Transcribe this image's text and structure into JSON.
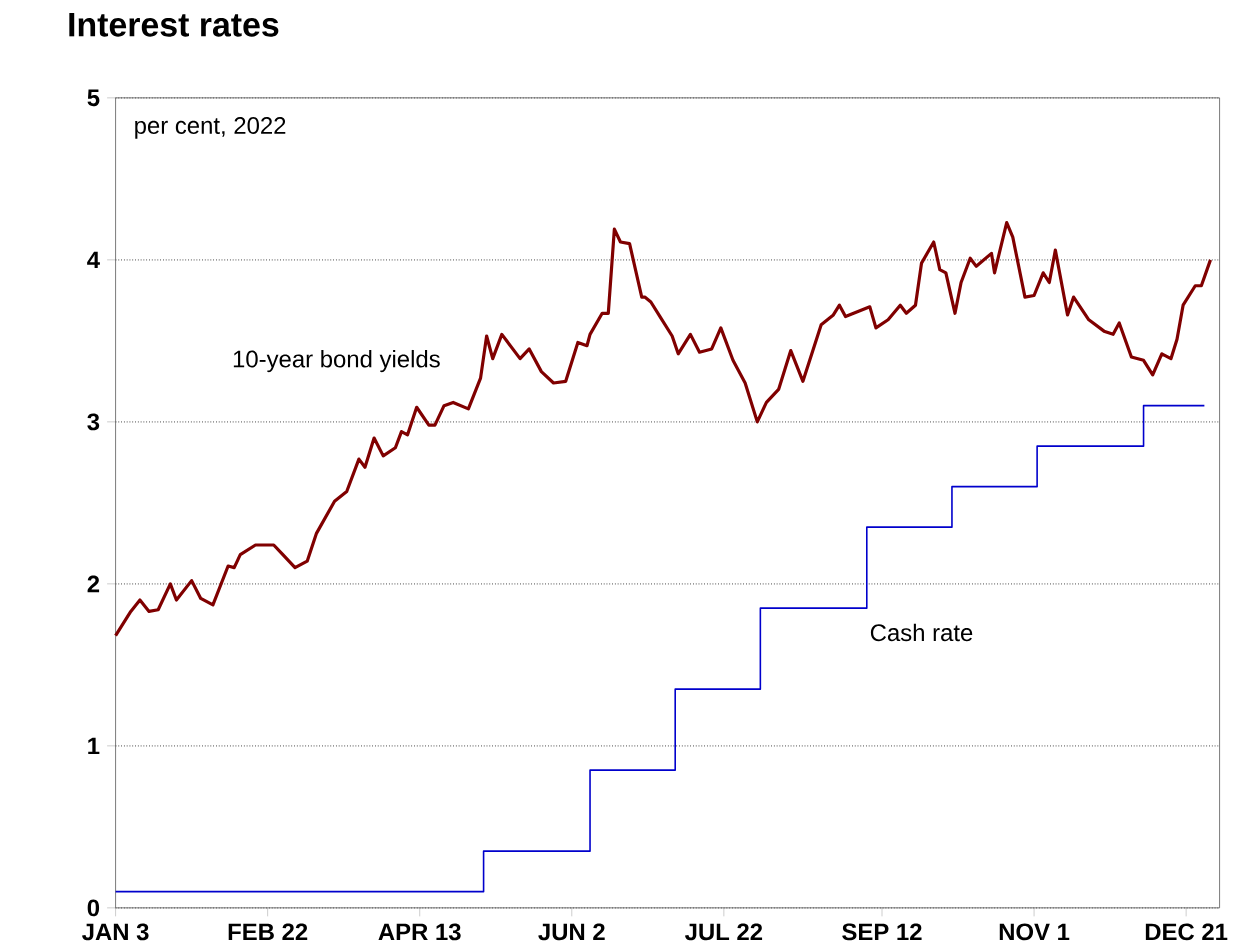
{
  "chart_data": {
    "type": "line",
    "title": "Interest rates",
    "annotations": [
      "per cent, 2022"
    ],
    "xlim": [
      "2022-01-03",
      "2023-01-01"
    ],
    "ylim": [
      0,
      5
    ],
    "xticks": [
      {
        "value": "2022-01-03",
        "label": "JAN 3"
      },
      {
        "value": "2022-02-22",
        "label": "FEB 22"
      },
      {
        "value": "2022-04-13",
        "label": "APR 13"
      },
      {
        "value": "2022-06-02",
        "label": "JUN 2"
      },
      {
        "value": "2022-07-22",
        "label": "JUL 22"
      },
      {
        "value": "2022-09-12",
        "label": "SEP 12"
      },
      {
        "value": "2022-11-01",
        "label": "NOV 1"
      },
      {
        "value": "2022-12-21",
        "label": "DEC 21"
      }
    ],
    "yticks": [
      0,
      1,
      2,
      3,
      4,
      5
    ],
    "grid": "y",
    "legend": false,
    "line_style": "solid",
    "marker": "none",
    "series": [
      {
        "name": "10-year bond yields",
        "color": "#800000",
        "x": [
          "2022-01-03",
          "2022-01-08",
          "2022-01-11",
          "2022-01-14",
          "2022-01-17",
          "2022-01-21",
          "2022-01-23",
          "2022-01-28",
          "2022-01-31",
          "2022-02-04",
          "2022-02-09",
          "2022-02-11",
          "2022-02-13",
          "2022-02-18",
          "2022-02-24",
          "2022-02-27",
          "2022-03-03",
          "2022-03-07",
          "2022-03-10",
          "2022-03-16",
          "2022-03-20",
          "2022-03-24",
          "2022-03-26",
          "2022-03-29",
          "2022-04-01",
          "2022-04-05",
          "2022-04-07",
          "2022-04-09",
          "2022-04-12",
          "2022-04-16",
          "2022-04-18",
          "2022-04-21",
          "2022-04-24",
          "2022-04-29",
          "2022-05-03",
          "2022-05-05",
          "2022-05-07",
          "2022-05-10",
          "2022-05-16",
          "2022-05-19",
          "2022-05-23",
          "2022-05-27",
          "2022-05-31",
          "2022-06-04",
          "2022-06-07",
          "2022-06-08",
          "2022-06-12",
          "2022-06-14",
          "2022-06-16",
          "2022-06-18",
          "2022-06-21",
          "2022-06-25",
          "2022-06-26",
          "2022-06-28",
          "2022-07-01",
          "2022-07-05",
          "2022-07-07",
          "2022-07-11",
          "2022-07-14",
          "2022-07-18",
          "2022-07-21",
          "2022-07-25",
          "2022-07-29",
          "2022-08-02",
          "2022-08-05",
          "2022-08-09",
          "2022-08-13",
          "2022-08-17",
          "2022-08-23",
          "2022-08-27",
          "2022-08-29",
          "2022-08-31",
          "2022-09-08",
          "2022-09-10",
          "2022-09-14",
          "2022-09-18",
          "2022-09-20",
          "2022-09-23",
          "2022-09-25",
          "2022-09-29",
          "2022-10-01",
          "2022-10-03",
          "2022-10-06",
          "2022-10-08",
          "2022-10-11",
          "2022-10-13",
          "2022-10-18",
          "2022-10-19",
          "2022-10-23",
          "2022-10-25",
          "2022-10-29",
          "2022-11-01",
          "2022-11-04",
          "2022-11-06",
          "2022-11-08",
          "2022-11-12",
          "2022-11-14",
          "2022-11-19",
          "2022-11-24",
          "2022-11-27",
          "2022-11-29",
          "2022-12-03",
          "2022-12-07",
          "2022-12-10",
          "2022-12-13",
          "2022-12-16",
          "2022-12-18",
          "2022-12-20",
          "2022-12-24",
          "2022-12-26",
          "2022-12-29"
        ],
        "values": [
          1.68,
          1.83,
          1.9,
          1.83,
          1.84,
          2.0,
          1.9,
          2.02,
          1.91,
          1.87,
          2.11,
          2.1,
          2.18,
          2.24,
          2.24,
          2.18,
          2.1,
          2.14,
          2.31,
          2.51,
          2.57,
          2.77,
          2.72,
          2.9,
          2.79,
          2.84,
          2.94,
          2.92,
          3.09,
          2.98,
          2.98,
          3.1,
          3.12,
          3.08,
          3.27,
          3.53,
          3.39,
          3.54,
          3.39,
          3.45,
          3.31,
          3.24,
          3.25,
          3.49,
          3.47,
          3.54,
          3.67,
          3.67,
          4.19,
          4.11,
          4.1,
          3.77,
          3.77,
          3.74,
          3.65,
          3.53,
          3.42,
          3.54,
          3.43,
          3.45,
          3.58,
          3.38,
          3.24,
          3.0,
          3.12,
          3.2,
          3.44,
          3.25,
          3.6,
          3.66,
          3.72,
          3.65,
          3.71,
          3.58,
          3.63,
          3.72,
          3.67,
          3.72,
          3.98,
          4.11,
          3.94,
          3.92,
          3.67,
          3.86,
          4.01,
          3.96,
          4.04,
          3.92,
          4.23,
          4.14,
          3.77,
          3.78,
          3.92,
          3.86,
          4.06,
          3.66,
          3.77,
          3.63,
          3.56,
          3.54,
          3.61,
          3.4,
          3.38,
          3.29,
          3.42,
          3.39,
          3.51,
          3.72,
          3.84,
          3.84,
          4.0
        ]
      },
      {
        "name": "Cash rate",
        "type": "step",
        "color": "#0000cc",
        "x": [
          "2022-01-03",
          "2022-05-04",
          "2022-06-08",
          "2022-07-06",
          "2022-08-03",
          "2022-09-07",
          "2022-10-05",
          "2022-11-02",
          "2022-12-07",
          "2022-12-27"
        ],
        "values": [
          0.1,
          0.35,
          0.85,
          1.35,
          1.85,
          2.35,
          2.6,
          2.85,
          3.1,
          3.1
        ]
      }
    ]
  }
}
